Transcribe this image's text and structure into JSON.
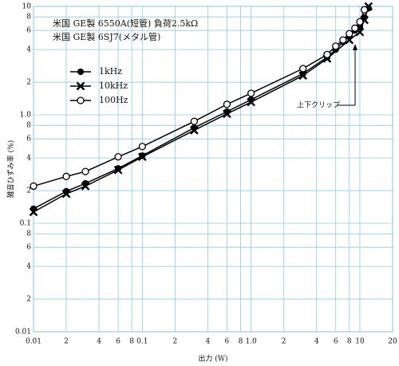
{
  "chart_data": {
    "type": "line",
    "title_lines": [
      "米国 GE製 6550A(短管) 負荷2.5kΩ",
      "米国 GE製 6SJ7(メタル管)"
    ],
    "xlabel": "出力 (W)",
    "ylabel": "雑音ひずみ率 (%)",
    "xscale": "log",
    "yscale": "log",
    "grid": true,
    "legend": "upper left",
    "xlim": [
      0.01,
      20
    ],
    "ylim": [
      0.01,
      10
    ],
    "xticks": [
      0.01,
      {
        "value": 0.02,
        "label": "2"
      },
      {
        "value": 0.04,
        "label": "4"
      },
      {
        "value": 0.06,
        "label": "6"
      },
      {
        "value": 0.08,
        "label": "8"
      },
      0.1,
      {
        "value": 0.2,
        "label": "2"
      },
      {
        "value": 0.4,
        "label": "4"
      },
      {
        "value": 0.6,
        "label": "6"
      },
      {
        "value": 0.8,
        "label": "8"
      },
      {
        "value": 1,
        "label": "1.0"
      },
      2,
      4,
      6,
      8,
      10,
      20
    ],
    "yticks": [
      0.01,
      {
        "value": 0.02,
        "label": "2"
      },
      {
        "value": 0.04,
        "label": "4"
      },
      {
        "value": 0.06,
        "label": "6"
      },
      {
        "value": 0.08,
        "label": "8"
      },
      0.1,
      {
        "value": 0.2,
        "label": "2"
      },
      {
        "value": 0.4,
        "label": "4"
      },
      {
        "value": 0.6,
        "label": "6"
      },
      {
        "value": 0.8,
        "label": "8"
      },
      {
        "value": 1,
        "label": "1.0"
      },
      2,
      4,
      6,
      8,
      10
    ],
    "annotation": "上下クリップ",
    "series": [
      {
        "name": "1kHz",
        "color": "#000000",
        "marker": "filled-circle",
        "x": [
          0.01,
          0.02,
          0.03,
          0.06,
          0.1,
          0.3,
          0.6,
          1,
          3,
          5,
          6,
          7,
          8,
          9,
          10,
          11,
          12
        ],
        "values": [
          0.136,
          0.197,
          0.233,
          0.32,
          0.42,
          0.76,
          1.07,
          1.38,
          2.4,
          3.4,
          4.0,
          4.7,
          5.3,
          6.0,
          6.5,
          7.9,
          9.6
        ]
      },
      {
        "name": "10kHz",
        "color": "#000000",
        "marker": "cross",
        "x": [
          0.01,
          0.02,
          0.03,
          0.06,
          0.1,
          0.3,
          0.6,
          1,
          3,
          5,
          8,
          10,
          11,
          12
        ],
        "values": [
          0.127,
          0.187,
          0.22,
          0.31,
          0.41,
          0.72,
          1.02,
          1.31,
          2.3,
          3.3,
          4.9,
          5.8,
          7.5,
          10
        ]
      },
      {
        "name": "100Hz",
        "color": "#000000",
        "marker": "open-circle",
        "x": [
          0.01,
          0.02,
          0.03,
          0.06,
          0.1,
          0.3,
          0.6,
          1,
          3,
          5,
          6,
          7,
          8,
          9,
          10,
          11
        ],
        "values": [
          0.22,
          0.27,
          0.3,
          0.41,
          0.51,
          0.87,
          1.25,
          1.58,
          2.67,
          3.6,
          4.3,
          4.9,
          5.6,
          6.3,
          7.2,
          9.3
        ]
      }
    ]
  }
}
